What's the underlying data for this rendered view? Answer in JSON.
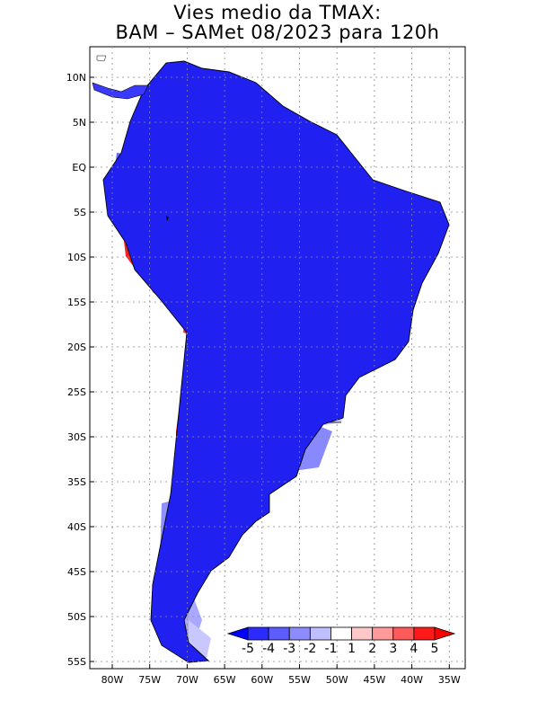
{
  "title_line1": "Vies medio da TMAX:",
  "title_line2": "BAM – SAMet 08/2023  para 120h",
  "latitude_labels": [
    "10N",
    "5N",
    "EQ",
    "5S",
    "10S",
    "15S",
    "20S",
    "25S",
    "30S",
    "35S",
    "40S",
    "45S",
    "50S",
    "55S"
  ],
  "longitude_labels": [
    "80W",
    "75W",
    "70W",
    "65W",
    "60W",
    "55W",
    "50W",
    "45W",
    "40W",
    "35W"
  ],
  "colorbar": {
    "labels": [
      "-5",
      "-4",
      "-3",
      "-2",
      "-1",
      "1",
      "2",
      "3",
      "4",
      "5"
    ],
    "colors": [
      "#0000ff",
      "#2b2bff",
      "#5c5cff",
      "#8c8cff",
      "#bfbfff",
      "#ffffff",
      "#ffc8c8",
      "#ff9a9a",
      "#ff5a5a",
      "#ff1a1a",
      "#ff0000"
    ]
  },
  "map_colors": {
    "strong_blue": "#1414f0",
    "mid_blue": "#5a5aff",
    "light_blue": "#9a9aff",
    "pale_blue": "#c8c8ff",
    "red": "#ff2020"
  }
}
